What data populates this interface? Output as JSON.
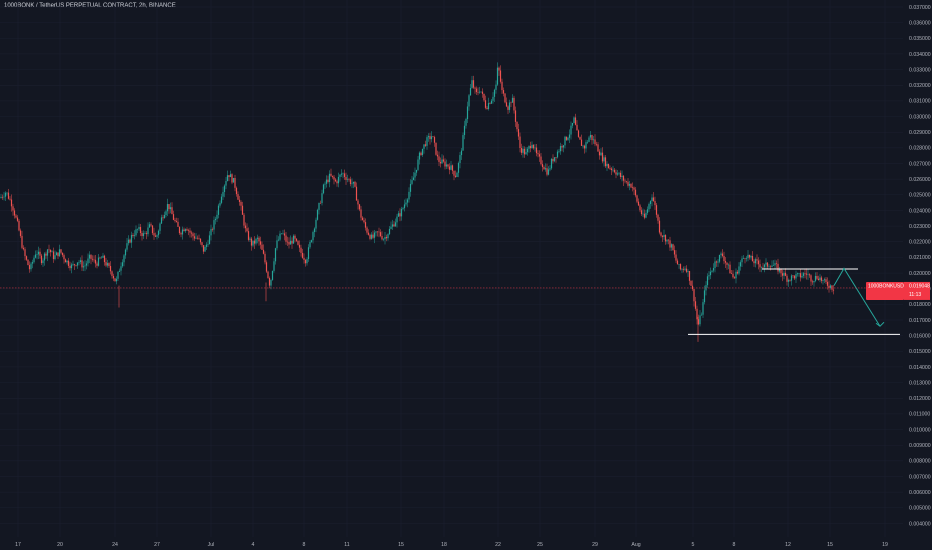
{
  "header": {
    "title": "1000BONK / TetherUS PERPETUAL CONTRACT, 2h, BINANCE"
  },
  "colors": {
    "bg": "#131722",
    "up": "#26a69a",
    "down": "#ef5350",
    "axis_text": "#b2b5be",
    "drawing": "#ffffff",
    "arrow": "#26a69a",
    "badge": "#f23645",
    "grid": "#1c2030"
  },
  "price_badge": {
    "symbol": "1000BONKUSDT.P",
    "price": "0.019048",
    "countdown": "11:13",
    "value": 0.019048
  },
  "chart_data": {
    "type": "candlestick",
    "title": "",
    "xlabel": "",
    "ylabel": "",
    "ylim": [
      0.0036,
      0.037
    ],
    "grid": true,
    "y_tick_labels": [
      "0.037000",
      "0.036000",
      "0.035000",
      "0.034000",
      "0.033000",
      "0.032000",
      "0.031000",
      "0.030000",
      "0.029000",
      "0.028000",
      "0.027000",
      "0.026000",
      "0.025000",
      "0.024000",
      "0.023000",
      "0.022000",
      "0.021000",
      "0.020000",
      "0.019000",
      "0.018000",
      "0.017000",
      "0.016000",
      "0.015000",
      "0.014000",
      "0.013000",
      "0.012000",
      "0.011000",
      "0.010000",
      "0.009000",
      "0.008000",
      "0.007000",
      "0.006000",
      "0.005000",
      "0.004000"
    ],
    "x_tick_labels": [
      "17",
      "20",
      "24",
      "27",
      "Jul",
      "4",
      "8",
      "11",
      "15",
      "18",
      "22",
      "25",
      "29",
      "Aug",
      "5",
      "8",
      "12",
      "15",
      "19"
    ],
    "price_path": [
      [
        0,
        0.0248
      ],
      [
        6,
        0.0252
      ],
      [
        12,
        0.0244
      ],
      [
        18,
        0.023
      ],
      [
        24,
        0.0212
      ],
      [
        30,
        0.0202
      ],
      [
        36,
        0.0214
      ],
      [
        42,
        0.0208
      ],
      [
        48,
        0.0216
      ],
      [
        54,
        0.021
      ],
      [
        60,
        0.0214
      ],
      [
        66,
        0.0208
      ],
      [
        72,
        0.0204
      ],
      [
        78,
        0.0208
      ],
      [
        84,
        0.0204
      ],
      [
        90,
        0.021
      ],
      [
        96,
        0.0206
      ],
      [
        102,
        0.021
      ],
      [
        108,
        0.0204
      ],
      [
        112,
        0.02
      ],
      [
        116,
        0.0194
      ],
      [
        120,
        0.0204
      ],
      [
        126,
        0.0216
      ],
      [
        132,
        0.0224
      ],
      [
        138,
        0.0228
      ],
      [
        144,
        0.0224
      ],
      [
        150,
        0.023
      ],
      [
        156,
        0.0222
      ],
      [
        162,
        0.0236
      ],
      [
        168,
        0.0244
      ],
      [
        174,
        0.0234
      ],
      [
        180,
        0.0226
      ],
      [
        186,
        0.023
      ],
      [
        192,
        0.0224
      ],
      [
        198,
        0.0222
      ],
      [
        204,
        0.0214
      ],
      [
        210,
        0.0224
      ],
      [
        216,
        0.0236
      ],
      [
        222,
        0.0252
      ],
      [
        228,
        0.0264
      ],
      [
        234,
        0.0258
      ],
      [
        240,
        0.0244
      ],
      [
        246,
        0.0226
      ],
      [
        252,
        0.0218
      ],
      [
        258,
        0.0222
      ],
      [
        264,
        0.021
      ],
      [
        270,
        0.0192
      ],
      [
        276,
        0.0218
      ],
      [
        282,
        0.0226
      ],
      [
        288,
        0.0218
      ],
      [
        294,
        0.0222
      ],
      [
        300,
        0.0214
      ],
      [
        306,
        0.0208
      ],
      [
        312,
        0.0224
      ],
      [
        318,
        0.024
      ],
      [
        324,
        0.0256
      ],
      [
        330,
        0.0262
      ],
      [
        336,
        0.0258
      ],
      [
        342,
        0.0264
      ],
      [
        348,
        0.026
      ],
      [
        354,
        0.0256
      ],
      [
        360,
        0.0238
      ],
      [
        366,
        0.0228
      ],
      [
        372,
        0.0222
      ],
      [
        378,
        0.0226
      ],
      [
        384,
        0.0222
      ],
      [
        390,
        0.0228
      ],
      [
        396,
        0.0234
      ],
      [
        402,
        0.024
      ],
      [
        408,
        0.025
      ],
      [
        414,
        0.0262
      ],
      [
        420,
        0.0276
      ],
      [
        426,
        0.0284
      ],
      [
        432,
        0.0288
      ],
      [
        438,
        0.0272
      ],
      [
        444,
        0.027
      ],
      [
        450,
        0.0268
      ],
      [
        456,
        0.0262
      ],
      [
        460,
        0.0274
      ],
      [
        464,
        0.029
      ],
      [
        468,
        0.031
      ],
      [
        472,
        0.0322
      ],
      [
        476,
        0.0314
      ],
      [
        480,
        0.0318
      ],
      [
        486,
        0.0306
      ],
      [
        492,
        0.0312
      ],
      [
        496,
        0.032
      ],
      [
        498,
        0.0333
      ],
      [
        502,
        0.0316
      ],
      [
        508,
        0.0306
      ],
      [
        512,
        0.0312
      ],
      [
        516,
        0.0296
      ],
      [
        520,
        0.028
      ],
      [
        526,
        0.0276
      ],
      [
        532,
        0.0284
      ],
      [
        536,
        0.0276
      ],
      [
        542,
        0.027
      ],
      [
        548,
        0.0264
      ],
      [
        552,
        0.0272
      ],
      [
        558,
        0.0278
      ],
      [
        564,
        0.0284
      ],
      [
        570,
        0.029
      ],
      [
        574,
        0.0298
      ],
      [
        578,
        0.0286
      ],
      [
        584,
        0.028
      ],
      [
        590,
        0.0288
      ],
      [
        596,
        0.0282
      ],
      [
        602,
        0.0274
      ],
      [
        608,
        0.0268
      ],
      [
        614,
        0.0266
      ],
      [
        620,
        0.0262
      ],
      [
        626,
        0.0258
      ],
      [
        632,
        0.0256
      ],
      [
        638,
        0.0244
      ],
      [
        644,
        0.0234
      ],
      [
        648,
        0.0242
      ],
      [
        652,
        0.025
      ],
      [
        656,
        0.024
      ],
      [
        660,
        0.0226
      ],
      [
        666,
        0.0222
      ],
      [
        672,
        0.0216
      ],
      [
        676,
        0.0208
      ],
      [
        680,
        0.0202
      ],
      [
        686,
        0.0204
      ],
      [
        690,
        0.0196
      ],
      [
        694,
        0.0184
      ],
      [
        698,
        0.0166
      ],
      [
        702,
        0.0176
      ],
      [
        706,
        0.0194
      ],
      [
        710,
        0.02
      ],
      [
        716,
        0.0208
      ],
      [
        722,
        0.0212
      ],
      [
        728,
        0.0204
      ],
      [
        734,
        0.0196
      ],
      [
        740,
        0.0206
      ],
      [
        746,
        0.0212
      ],
      [
        752,
        0.0208
      ],
      [
        758,
        0.0206
      ],
      [
        764,
        0.0204
      ],
      [
        770,
        0.0206
      ],
      [
        776,
        0.0204
      ],
      [
        782,
        0.02
      ],
      [
        788,
        0.0196
      ],
      [
        794,
        0.0198
      ],
      [
        800,
        0.0198
      ],
      [
        806,
        0.02
      ],
      [
        812,
        0.0196
      ],
      [
        818,
        0.0198
      ],
      [
        824,
        0.0194
      ],
      [
        830,
        0.0192
      ],
      [
        834,
        0.019
      ]
    ],
    "levels": [
      {
        "name": "upper-range-line",
        "price": 0.02026,
        "x0": 762,
        "x1": 858
      },
      {
        "name": "support-line",
        "price": 0.01608,
        "x0": 688,
        "x1": 900
      }
    ],
    "projection": [
      [
        834,
        0.0192
      ],
      [
        844,
        0.0203
      ],
      [
        880,
        0.0166
      ]
    ]
  }
}
